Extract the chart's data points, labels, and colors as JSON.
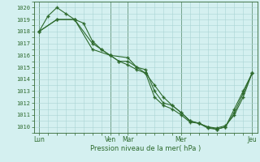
{
  "bg_color": "#d4f0f0",
  "grid_major_color": "#b0d8d8",
  "grid_minor_color": "#c8e8e8",
  "line_color": "#2d6a2d",
  "ylabel_text": "Pression niveau de la mer( hPa )",
  "ylim": [
    1009.5,
    1020.5
  ],
  "yticks": [
    1010,
    1011,
    1012,
    1013,
    1014,
    1015,
    1016,
    1017,
    1018,
    1019,
    1020
  ],
  "xtick_positions": [
    0,
    4,
    5,
    8,
    12
  ],
  "xtick_labels": [
    "Lun",
    "Ven",
    "Mar",
    "Mer",
    "Jeu"
  ],
  "vline_positions": [
    0,
    4,
    5,
    8,
    12
  ],
  "line1_x": [
    0,
    0.5,
    1,
    1.5,
    2,
    2.5,
    3,
    3.5,
    4,
    4.5,
    5,
    5.5,
    6,
    6.5,
    7,
    7.5,
    8,
    8.5,
    9,
    9.5,
    10,
    10.5,
    11,
    11.5,
    12
  ],
  "line1_y": [
    1018.0,
    1019.3,
    1020.0,
    1019.5,
    1019.0,
    1018.7,
    1017.2,
    1016.5,
    1016.0,
    1015.5,
    1015.2,
    1014.8,
    1014.5,
    1013.5,
    1012.5,
    1011.8,
    1011.2,
    1010.5,
    1010.3,
    1010.0,
    1009.9,
    1010.1,
    1011.0,
    1012.5,
    1014.5
  ],
  "line2_x": [
    0,
    1,
    2,
    3,
    3.5,
    4,
    4.5,
    5,
    5.5,
    6,
    6.5,
    7,
    7.5,
    8,
    8.5,
    9,
    9.5,
    10,
    10.5,
    11,
    11.5,
    12
  ],
  "line2_y": [
    1018.0,
    1019.0,
    1019.0,
    1017.0,
    1016.5,
    1016.0,
    1015.5,
    1015.5,
    1015.0,
    1014.8,
    1013.0,
    1012.0,
    1011.8,
    1011.2,
    1010.5,
    1010.3,
    1010.0,
    1009.8,
    1010.0,
    1011.2,
    1012.8,
    1014.5
  ],
  "line3_x": [
    0,
    1,
    2,
    3,
    4,
    5,
    5.5,
    6,
    6.5,
    7,
    7.5,
    8,
    8.5,
    9,
    9.5,
    10,
    10.5,
    11,
    11.5,
    12
  ],
  "line3_y": [
    1018.0,
    1019.0,
    1019.0,
    1016.5,
    1016.0,
    1015.8,
    1015.0,
    1014.5,
    1012.5,
    1011.8,
    1011.5,
    1011.0,
    1010.4,
    1010.3,
    1009.9,
    1009.8,
    1010.0,
    1011.5,
    1013.0,
    1014.5
  ]
}
